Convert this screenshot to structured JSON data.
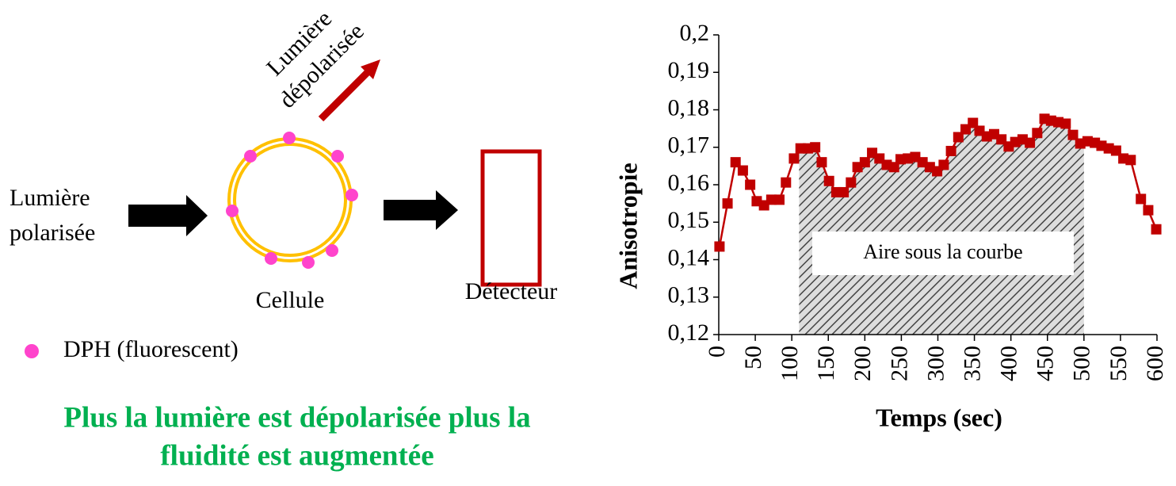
{
  "diagram": {
    "input_label": [
      "Lumière",
      "polarisée"
    ],
    "output_label": [
      "Lumière",
      "dépolarisée"
    ],
    "cell_label": "Cellule",
    "detector_label": "Détecteur",
    "legend_label": "DPH (fluorescent)",
    "conclusion": [
      "Plus la lumière est dépolarisée plus la",
      "fluidité est augmentée"
    ]
  },
  "chart_data": {
    "type": "line",
    "x_label": "Temps (sec)",
    "y_label": "Anisotropie",
    "annotation": "Aire sous la courbe",
    "x": [
      1,
      12,
      23,
      33,
      43,
      52,
      62,
      72,
      83,
      92,
      103,
      112,
      122,
      132,
      141,
      151,
      161,
      171,
      181,
      190,
      200,
      210,
      220,
      230,
      240,
      249,
      259,
      269,
      279,
      289,
      299,
      308,
      318,
      328,
      338,
      348,
      357,
      367,
      377,
      387,
      397,
      406,
      416,
      426,
      436,
      446,
      455,
      465,
      475,
      485,
      495,
      505,
      515,
      524,
      534,
      544,
      554,
      564,
      578,
      588,
      599
    ],
    "series": [
      {
        "color": "#c00000",
        "values": [
          0.1435,
          0.155,
          0.166,
          0.1638,
          0.16,
          0.1556,
          0.1545,
          0.156,
          0.156,
          0.1606,
          0.167,
          0.1697,
          0.1697,
          0.17,
          0.166,
          0.161,
          0.158,
          0.158,
          0.1606,
          0.1647,
          0.166,
          0.1685,
          0.167,
          0.1653,
          0.1647,
          0.1668,
          0.167,
          0.1674,
          0.166,
          0.1647,
          0.1636,
          0.1653,
          0.169,
          0.1727,
          0.1748,
          0.1765,
          0.1744,
          0.1729,
          0.1735,
          0.1721,
          0.1702,
          0.1714,
          0.1721,
          0.1712,
          0.1738,
          0.1776,
          0.1771,
          0.1767,
          0.1763,
          0.1733,
          0.171,
          0.1716,
          0.1712,
          0.1704,
          0.1697,
          0.1691,
          0.167,
          0.1666,
          0.1562,
          0.1532,
          0.1481
        ]
      }
    ],
    "area_xrange": [
      110,
      500
    ],
    "xlim": [
      0,
      600
    ],
    "xticks": [
      0,
      50,
      100,
      150,
      200,
      250,
      300,
      350,
      400,
      450,
      500,
      550,
      600
    ],
    "ylim": [
      0.12,
      0.2
    ],
    "yticks": [
      {
        "value": 0.12,
        "label": "0,12"
      },
      {
        "value": 0.13,
        "label": "0,13"
      },
      {
        "value": 0.14,
        "label": "0,14"
      },
      {
        "value": 0.15,
        "label": "0,15"
      },
      {
        "value": 0.16,
        "label": "0,16"
      },
      {
        "value": 0.17,
        "label": "0,17"
      },
      {
        "value": 0.18,
        "label": "0,18"
      },
      {
        "value": 0.19,
        "label": "0,19"
      },
      {
        "value": 0.2,
        "label": "0,2"
      }
    ]
  }
}
